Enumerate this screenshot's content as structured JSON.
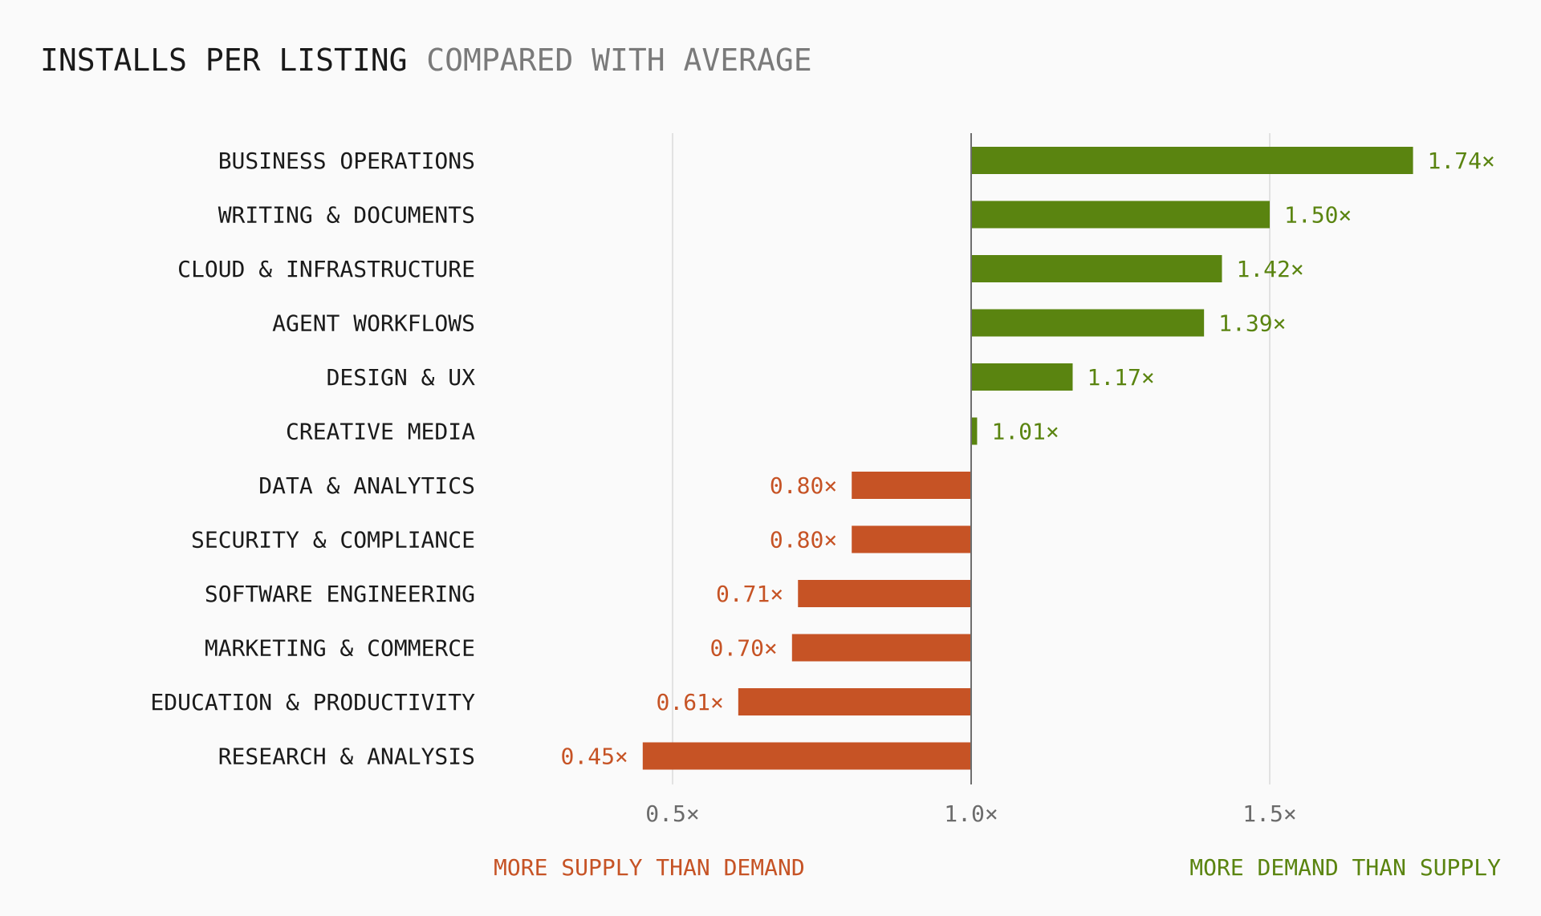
{
  "title": "INSTALLS PER LISTING",
  "subtitle": "COMPARED WITH AVERAGE",
  "colors": {
    "positive": "#5a8410",
    "negative": "#c65325",
    "grid": "#e2e2e2",
    "baseline": "#6e6e6e",
    "text": "#1a1a1a",
    "muted": "#7a7a7a"
  },
  "chart_data": {
    "type": "bar",
    "orientation": "horizontal",
    "baseline": 1.0,
    "xlim": [
      0.0,
      1.9
    ],
    "xticks": [
      0.5,
      1.0,
      1.5
    ],
    "xtick_labels": [
      "0.5×",
      "1.0×",
      "1.5×"
    ],
    "grid": true,
    "categories": [
      "BUSINESS OPERATIONS",
      "WRITING & DOCUMENTS",
      "CLOUD & INFRASTRUCTURE",
      "AGENT WORKFLOWS",
      "DESIGN & UX",
      "CREATIVE MEDIA",
      "DATA & ANALYTICS",
      "SECURITY & COMPLIANCE",
      "SOFTWARE ENGINEERING",
      "MARKETING & COMMERCE",
      "EDUCATION & PRODUCTIVITY",
      "RESEARCH & ANALYSIS"
    ],
    "values": [
      1.74,
      1.5,
      1.42,
      1.39,
      1.17,
      1.01,
      0.8,
      0.8,
      0.71,
      0.7,
      0.61,
      0.45
    ],
    "value_labels": [
      "1.74×",
      "1.50×",
      "1.42×",
      "1.39×",
      "1.17×",
      "1.01×",
      "0.80×",
      "0.80×",
      "0.71×",
      "0.70×",
      "0.61×",
      "0.45×"
    ],
    "annotations": {
      "left": "MORE SUPPLY THAN DEMAND",
      "right": "MORE DEMAND THAN SUPPLY"
    }
  }
}
